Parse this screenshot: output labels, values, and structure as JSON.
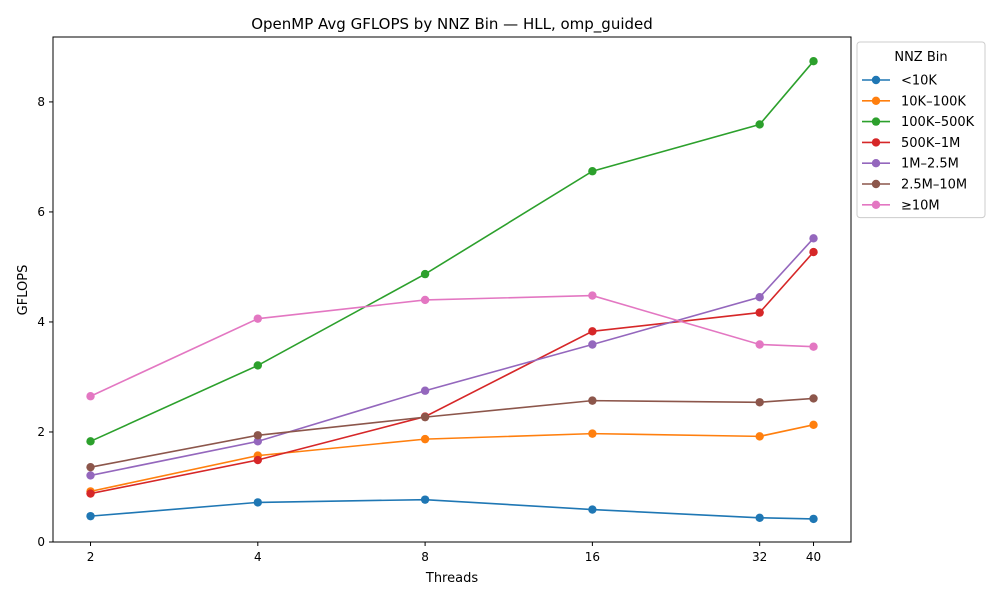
{
  "chart_data": {
    "type": "line",
    "title": "OpenMP Avg GFLOPS by NNZ Bin — HLL, omp_guided",
    "xlabel": "Threads",
    "ylabel": "GFLOPS",
    "x_scale": "log2",
    "x": [
      2,
      4,
      8,
      16,
      32,
      40
    ],
    "x_ticks": [
      "2",
      "4",
      "8",
      "16",
      "32",
      "40"
    ],
    "y_ticks": [
      "0",
      "2",
      "4",
      "6",
      "8"
    ],
    "ylim": [
      0,
      9.18
    ],
    "grid": false,
    "legend_title": "NNZ Bin",
    "legend_position": "outside-right-top",
    "series": [
      {
        "name": "<10K",
        "color": "#1f77b4",
        "values": [
          0.47,
          0.72,
          0.77,
          0.59,
          0.44,
          0.42
        ]
      },
      {
        "name": "10K–100K",
        "color": "#ff7f0e",
        "values": [
          0.92,
          1.57,
          1.87,
          1.97,
          1.92,
          2.13
        ]
      },
      {
        "name": "100K–500K",
        "color": "#2ca02c",
        "values": [
          1.83,
          3.21,
          4.87,
          6.74,
          7.59,
          8.74
        ]
      },
      {
        "name": "500K–1M",
        "color": "#d62728",
        "values": [
          0.88,
          1.49,
          2.28,
          3.83,
          4.17,
          5.27
        ]
      },
      {
        "name": "1M–2.5M",
        "color": "#9467bd",
        "values": [
          1.21,
          1.83,
          2.75,
          3.59,
          4.45,
          5.52
        ]
      },
      {
        "name": "2.5M–10M",
        "color": "#8c564b",
        "values": [
          1.36,
          1.94,
          2.27,
          2.57,
          2.54,
          2.61
        ]
      },
      {
        "name": "≥10M",
        "color": "#e377c2",
        "values": [
          2.65,
          4.06,
          4.4,
          4.48,
          3.59,
          3.55
        ]
      }
    ]
  }
}
